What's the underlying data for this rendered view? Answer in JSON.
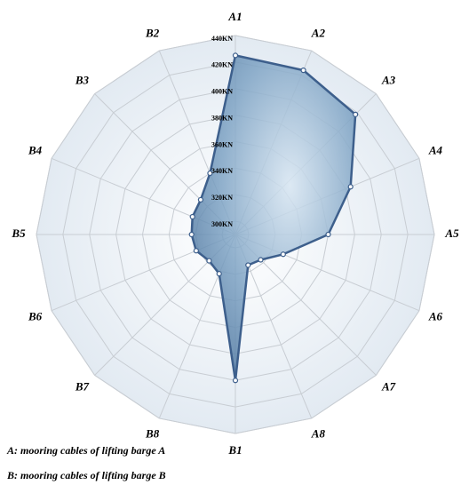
{
  "chart_data": {
    "type": "radar",
    "categories": [
      "A1",
      "A2",
      "A3",
      "A4",
      "A5",
      "A6",
      "A7",
      "A8",
      "B1",
      "B8",
      "B7",
      "B6",
      "B5",
      "B4",
      "B3",
      "B2"
    ],
    "series": [
      {
        "color": "#3d5f8c",
        "values": [
          425,
          424,
          418,
          384,
          360,
          329,
          317,
          315,
          400,
          322,
          318,
          322,
          323,
          325,
          327,
          340
        ]
      }
    ],
    "ylim": [
      290,
      440
    ],
    "yticks": [
      {
        "value": 300,
        "label": "300KN"
      },
      {
        "value": 320,
        "label": "320KN"
      },
      {
        "value": 340,
        "label": "340KN"
      },
      {
        "value": 360,
        "label": "360KN"
      },
      {
        "value": 380,
        "label": "380KN"
      },
      {
        "value": 400,
        "label": "400KN"
      },
      {
        "value": 420,
        "label": "420KN"
      },
      {
        "value": 440,
        "label": "440KN"
      }
    ],
    "notes": [
      "A: mooring cables of lifting barge A",
      "B: mooring cables of lifting barge B"
    ]
  }
}
